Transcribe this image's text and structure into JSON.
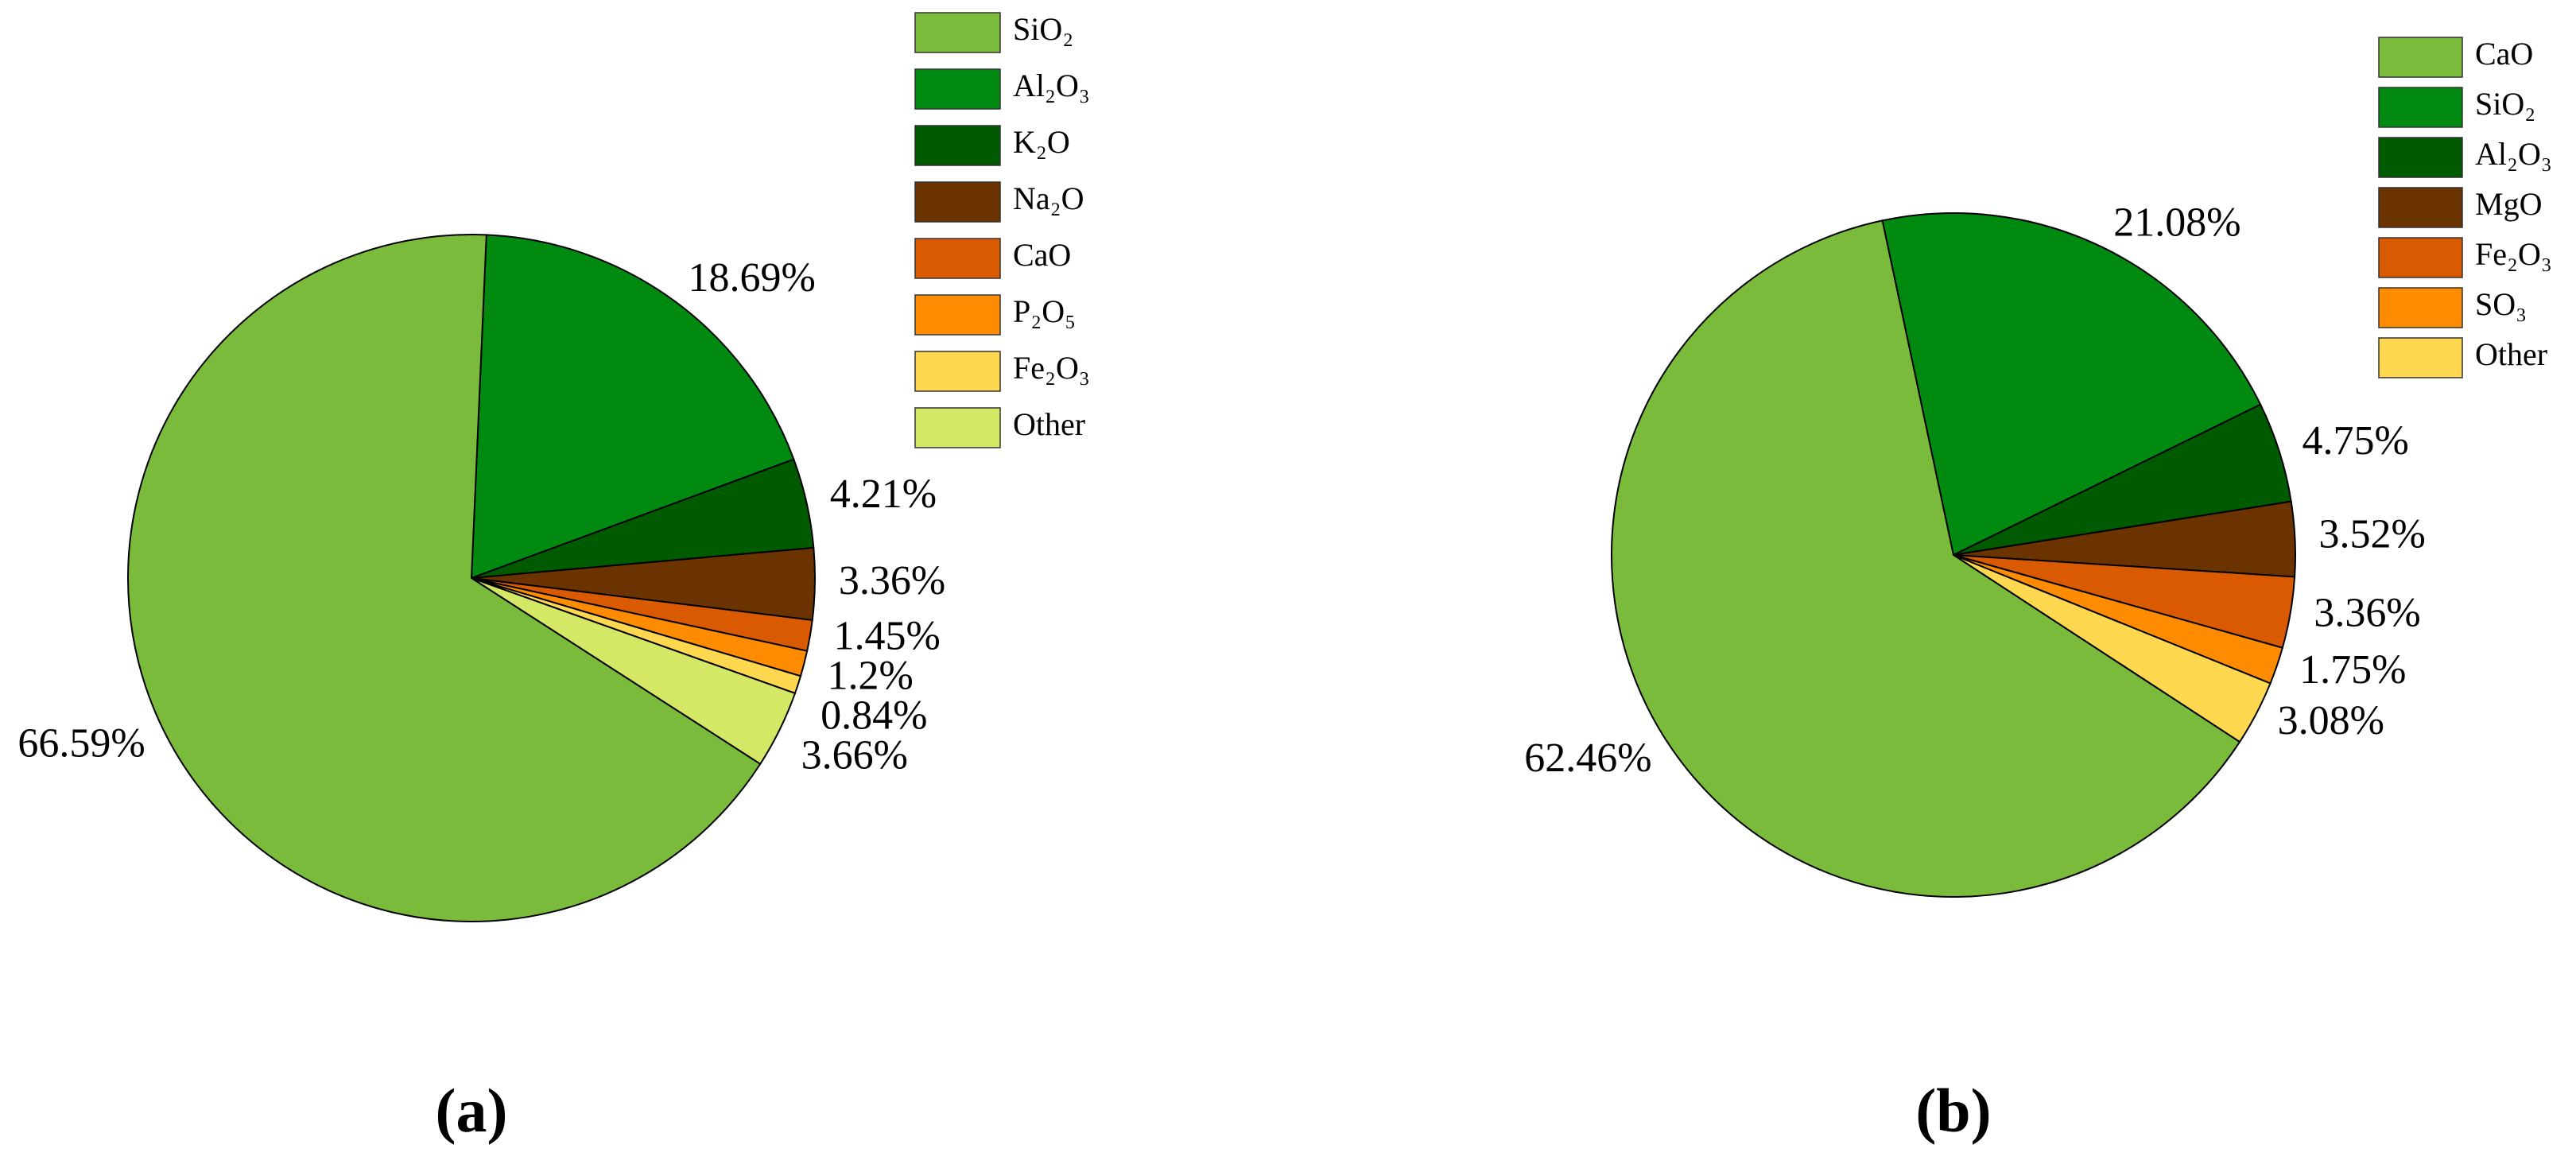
{
  "chart_data": [
    {
      "type": "pie",
      "caption": "(a)",
      "categories": [
        "SiO₂",
        "Al₂O₃",
        "K₂O",
        "Na₂O",
        "CaO",
        "P₂O₅",
        "Fe₂O₃",
        "Other"
      ],
      "values": [
        66.59,
        18.69,
        4.21,
        3.36,
        1.45,
        1.2,
        0.84,
        3.66
      ],
      "value_labels": [
        "66.59%",
        "18.69%",
        "4.21%",
        "3.36%",
        "1.45%",
        "1.2%",
        "0.84%",
        "3.66%"
      ],
      "colors": [
        "#7bbb3c",
        "#008a10",
        "#005a00",
        "#6b3300",
        "#d95a00",
        "#ff8c00",
        "#ffd84f",
        "#d4e866"
      ]
    },
    {
      "type": "pie",
      "caption": "(b)",
      "categories": [
        "CaO",
        "SiO₂",
        "Al₂O₃",
        "MgO",
        "Fe₂O₃",
        "SO₃",
        "Other"
      ],
      "values": [
        62.46,
        21.08,
        4.75,
        3.52,
        3.36,
        1.75,
        3.08
      ],
      "value_labels": [
        "62.46%",
        "21.08%",
        "4.75%",
        "3.52%",
        "3.36%",
        "1.75%",
        "3.08%"
      ],
      "colors": [
        "#7bbb3c",
        "#008a10",
        "#005a00",
        "#6b3300",
        "#d95a00",
        "#ff8c00",
        "#ffd84f"
      ]
    }
  ]
}
